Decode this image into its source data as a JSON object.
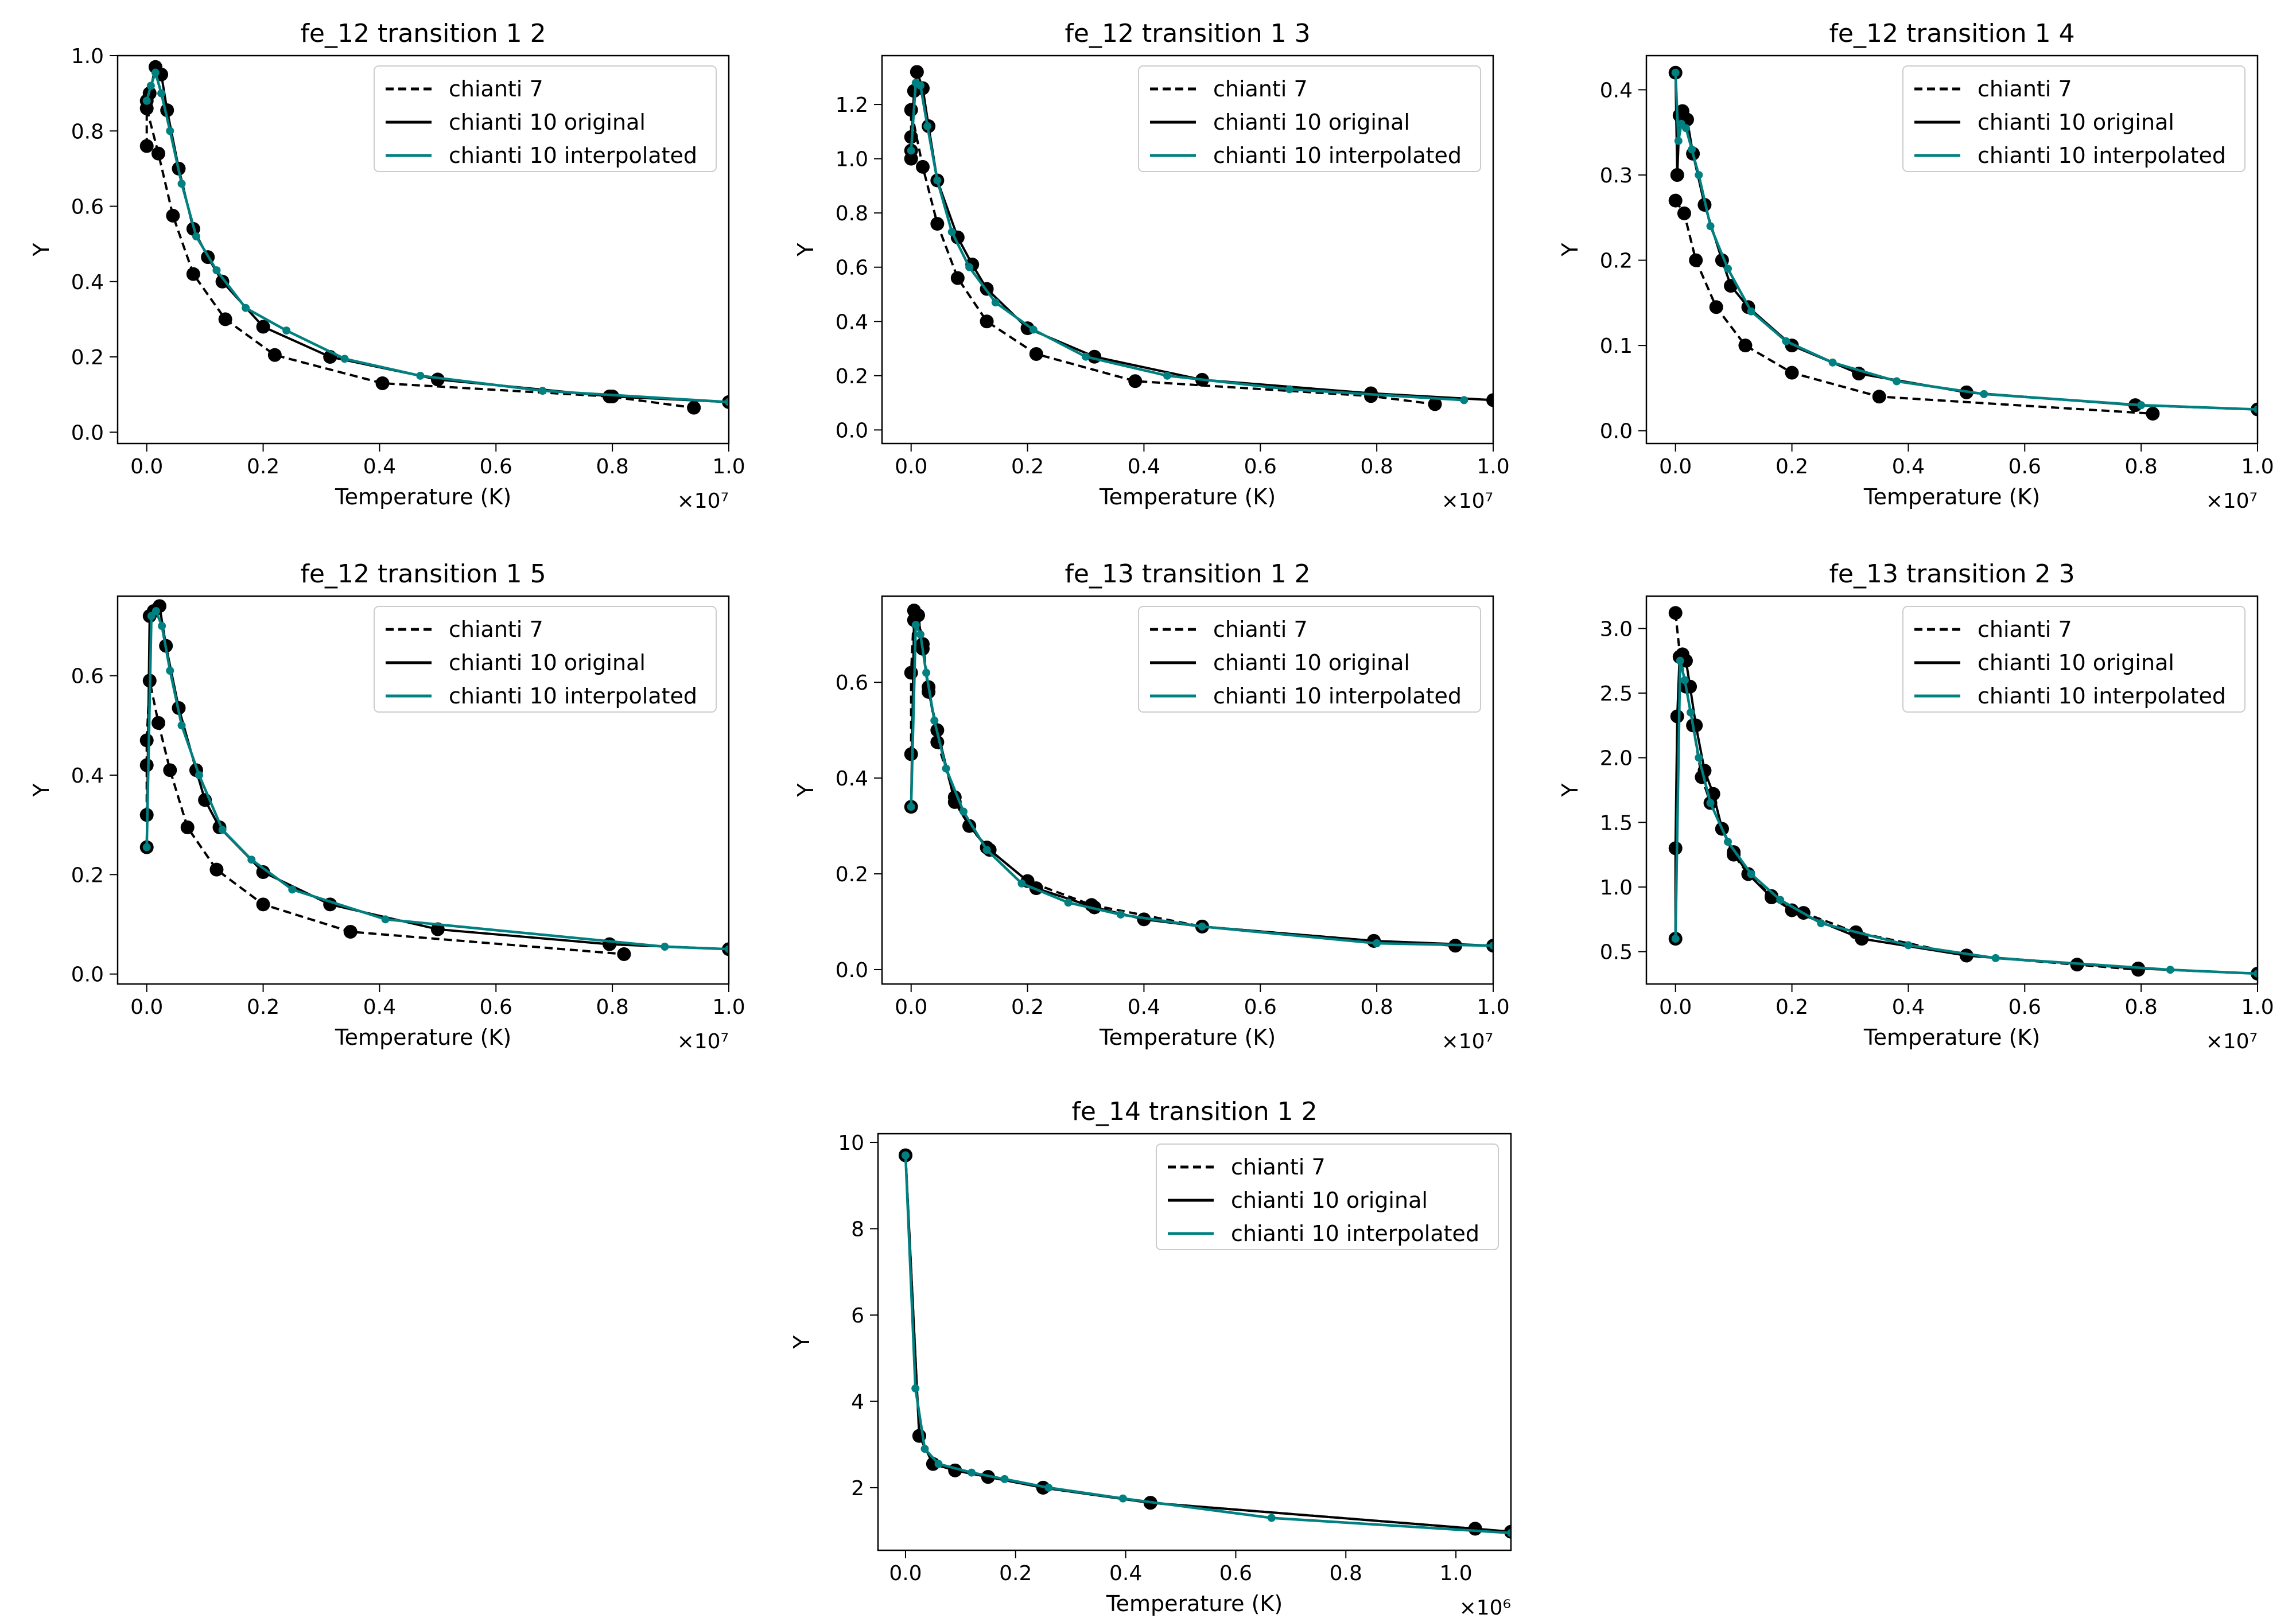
{
  "figure": {
    "legend_labels": [
      "chianti 7",
      "chianti 10 original",
      "chianti 10 interpolated"
    ],
    "colors": {
      "chianti7": "#000000",
      "original": "#000000",
      "interpolated": "#008080"
    }
  },
  "chart_data": [
    {
      "type": "line",
      "title": "fe_12 transition 1 2",
      "xlabel": "Temperature (K)",
      "ylabel": "Y",
      "xscale_label": "×10⁷",
      "xscale": 10000000,
      "xlim": [
        -0.05,
        1.0
      ],
      "ylim": [
        -0.03,
        1.0
      ],
      "xticks": [
        0.0,
        0.2,
        0.4,
        0.6,
        0.8,
        1.0
      ],
      "yticks": [
        0.0,
        0.2,
        0.4,
        0.6,
        0.8,
        1.0
      ],
      "legend_position": "upper right",
      "series": [
        {
          "name": "chianti 7",
          "style": "dashed",
          "x": [
            0.0,
            0.0,
            0.02,
            0.045,
            0.08,
            0.135,
            0.22,
            0.405,
            0.795,
            0.94
          ],
          "y": [
            0.76,
            0.86,
            0.74,
            0.575,
            0.42,
            0.3,
            0.205,
            0.13,
            0.095,
            0.065
          ]
        },
        {
          "name": "chianti 10 original",
          "style": "solid-markers",
          "x": [
            0.0,
            0.005,
            0.015,
            0.025,
            0.035,
            0.055,
            0.08,
            0.105,
            0.13,
            0.2,
            0.315,
            0.5,
            0.8,
            1.0
          ],
          "y": [
            0.88,
            0.9,
            0.97,
            0.95,
            0.855,
            0.7,
            0.54,
            0.465,
            0.4,
            0.28,
            0.2,
            0.14,
            0.095,
            0.08
          ]
        },
        {
          "name": "chianti 10 interpolated",
          "style": "solid-smallmarkers",
          "x": [
            0.0,
            0.007,
            0.015,
            0.025,
            0.04,
            0.06,
            0.085,
            0.12,
            0.17,
            0.24,
            0.34,
            0.47,
            0.68,
            1.0
          ],
          "y": [
            0.88,
            0.92,
            0.955,
            0.9,
            0.8,
            0.66,
            0.52,
            0.43,
            0.33,
            0.27,
            0.195,
            0.15,
            0.11,
            0.08
          ]
        }
      ]
    },
    {
      "type": "line",
      "title": "fe_12 transition 1 3",
      "xlabel": "Temperature (K)",
      "ylabel": "Y",
      "xscale_label": "×10⁷",
      "xscale": 10000000,
      "xlim": [
        -0.05,
        1.0
      ],
      "ylim": [
        -0.05,
        1.38
      ],
      "xticks": [
        0.0,
        0.2,
        0.4,
        0.6,
        0.8,
        1.0
      ],
      "yticks": [
        0.0,
        0.2,
        0.4,
        0.6,
        0.8,
        1.0,
        1.2
      ],
      "legend_position": "upper right",
      "series": [
        {
          "name": "chianti 7",
          "style": "dashed",
          "x": [
            0.0,
            0.0,
            0.0,
            0.02,
            0.045,
            0.08,
            0.13,
            0.215,
            0.385,
            0.79,
            0.9
          ],
          "y": [
            1.0,
            1.08,
            1.18,
            0.97,
            0.76,
            0.56,
            0.4,
            0.28,
            0.18,
            0.125,
            0.095
          ]
        },
        {
          "name": "chianti 10 original",
          "style": "solid-markers",
          "x": [
            0.0,
            0.005,
            0.01,
            0.02,
            0.03,
            0.045,
            0.08,
            0.105,
            0.13,
            0.2,
            0.315,
            0.5,
            0.79,
            1.0
          ],
          "y": [
            1.03,
            1.25,
            1.32,
            1.26,
            1.12,
            0.92,
            0.71,
            0.61,
            0.52,
            0.375,
            0.27,
            0.185,
            0.135,
            0.11
          ]
        },
        {
          "name": "chianti 10 interpolated",
          "style": "solid-smallmarkers",
          "x": [
            0.0,
            0.008,
            0.016,
            0.028,
            0.045,
            0.07,
            0.1,
            0.145,
            0.21,
            0.3,
            0.44,
            0.65,
            0.95
          ],
          "y": [
            1.03,
            1.28,
            1.27,
            1.12,
            0.92,
            0.73,
            0.6,
            0.47,
            0.37,
            0.27,
            0.2,
            0.15,
            0.11
          ]
        }
      ]
    },
    {
      "type": "line",
      "title": "fe_12 transition 1 4",
      "xlabel": "Temperature (K)",
      "ylabel": "Y",
      "xscale_label": "×10⁷",
      "xscale": 10000000,
      "xlim": [
        -0.05,
        1.0
      ],
      "ylim": [
        -0.015,
        0.44
      ],
      "xticks": [
        0.0,
        0.2,
        0.4,
        0.6,
        0.8,
        1.0
      ],
      "yticks": [
        0.0,
        0.1,
        0.2,
        0.3,
        0.4
      ],
      "legend_position": "upper right",
      "series": [
        {
          "name": "chianti 7",
          "style": "dashed",
          "x": [
            0.0,
            0.015,
            0.035,
            0.07,
            0.12,
            0.2,
            0.35,
            0.82
          ],
          "y": [
            0.27,
            0.255,
            0.2,
            0.145,
            0.1,
            0.068,
            0.04,
            0.02
          ]
        },
        {
          "name": "chianti 10 original",
          "style": "solid-markers",
          "x": [
            0.0,
            0.003,
            0.007,
            0.012,
            0.02,
            0.03,
            0.05,
            0.08,
            0.095,
            0.125,
            0.2,
            0.315,
            0.5,
            0.79,
            1.0
          ],
          "y": [
            0.42,
            0.3,
            0.37,
            0.375,
            0.365,
            0.325,
            0.265,
            0.2,
            0.17,
            0.145,
            0.1,
            0.067,
            0.045,
            0.03,
            0.025
          ]
        },
        {
          "name": "chianti 10 interpolated",
          "style": "solid-smallmarkers",
          "x": [
            0.0,
            0.005,
            0.01,
            0.018,
            0.028,
            0.04,
            0.06,
            0.09,
            0.13,
            0.19,
            0.27,
            0.38,
            0.53,
            0.8,
            1.0
          ],
          "y": [
            0.42,
            0.34,
            0.36,
            0.355,
            0.33,
            0.3,
            0.24,
            0.19,
            0.14,
            0.105,
            0.08,
            0.058,
            0.043,
            0.03,
            0.025
          ]
        }
      ]
    },
    {
      "type": "line",
      "title": "fe_12 transition 1 5",
      "xlabel": "Temperature (K)",
      "ylabel": "Y",
      "xscale_label": "×10⁷",
      "xscale": 10000000,
      "xlim": [
        -0.05,
        1.0
      ],
      "ylim": [
        -0.02,
        0.76
      ],
      "xticks": [
        0.0,
        0.2,
        0.4,
        0.6,
        0.8,
        1.0
      ],
      "yticks": [
        0.0,
        0.2,
        0.4,
        0.6
      ],
      "legend_position": "upper right",
      "series": [
        {
          "name": "chianti 7",
          "style": "dashed",
          "x": [
            0.0,
            0.0,
            0.0,
            0.005,
            0.02,
            0.04,
            0.07,
            0.12,
            0.2,
            0.35,
            0.82
          ],
          "y": [
            0.32,
            0.42,
            0.47,
            0.59,
            0.505,
            0.41,
            0.295,
            0.21,
            0.14,
            0.085,
            0.04
          ]
        },
        {
          "name": "chianti 10 original",
          "style": "solid-markers",
          "x": [
            0.0,
            0.005,
            0.012,
            0.022,
            0.033,
            0.055,
            0.085,
            0.1,
            0.125,
            0.2,
            0.315,
            0.5,
            0.795,
            1.0
          ],
          "y": [
            0.255,
            0.72,
            0.73,
            0.74,
            0.66,
            0.535,
            0.41,
            0.35,
            0.295,
            0.205,
            0.14,
            0.09,
            0.06,
            0.05
          ]
        },
        {
          "name": "chianti 10 interpolated",
          "style": "solid-smallmarkers",
          "x": [
            0.0,
            0.008,
            0.016,
            0.026,
            0.04,
            0.06,
            0.09,
            0.13,
            0.18,
            0.25,
            0.41,
            0.89,
            1.0
          ],
          "y": [
            0.255,
            0.72,
            0.73,
            0.7,
            0.61,
            0.5,
            0.4,
            0.29,
            0.23,
            0.17,
            0.11,
            0.055,
            0.05
          ]
        }
      ]
    },
    {
      "type": "line",
      "title": "fe_13 transition 1 2",
      "xlabel": "Temperature (K)",
      "ylabel": "Y",
      "xscale_label": "×10⁷",
      "xscale": 10000000,
      "xlim": [
        -0.05,
        1.0
      ],
      "ylim": [
        -0.03,
        0.78
      ],
      "xticks": [
        0.0,
        0.2,
        0.4,
        0.6,
        0.8,
        1.0
      ],
      "yticks": [
        0.0,
        0.2,
        0.4,
        0.6
      ],
      "legend_position": "upper right",
      "series": [
        {
          "name": "chianti 7",
          "style": "dashed",
          "x": [
            0.0,
            0.0,
            0.005,
            0.012,
            0.02,
            0.03,
            0.045,
            0.075,
            0.1,
            0.13,
            0.2,
            0.31,
            0.5,
            0.795,
            0.935
          ],
          "y": [
            0.45,
            0.62,
            0.75,
            0.74,
            0.68,
            0.59,
            0.475,
            0.36,
            0.3,
            0.255,
            0.185,
            0.135,
            0.09,
            0.06,
            0.05
          ]
        },
        {
          "name": "chianti 10 original",
          "style": "solid-markers",
          "x": [
            0.0,
            0.005,
            0.012,
            0.02,
            0.03,
            0.045,
            0.075,
            0.1,
            0.135,
            0.215,
            0.315,
            0.4,
            0.5,
            0.795,
            1.0
          ],
          "y": [
            0.34,
            0.73,
            0.74,
            0.67,
            0.58,
            0.5,
            0.35,
            0.3,
            0.25,
            0.17,
            0.13,
            0.105,
            0.09,
            0.06,
            0.05
          ]
        },
        {
          "name": "chianti 10 interpolated",
          "style": "solid-smallmarkers",
          "x": [
            0.0,
            0.008,
            0.016,
            0.026,
            0.04,
            0.06,
            0.09,
            0.13,
            0.19,
            0.27,
            0.36,
            0.5,
            0.8,
            1.0
          ],
          "y": [
            0.34,
            0.72,
            0.7,
            0.62,
            0.52,
            0.42,
            0.33,
            0.25,
            0.18,
            0.14,
            0.115,
            0.09,
            0.055,
            0.05
          ]
        }
      ]
    },
    {
      "type": "line",
      "title": "fe_13 transition 2 3",
      "xlabel": "Temperature (K)",
      "ylabel": "Y",
      "xscale_label": "×10⁷",
      "xscale": 10000000,
      "xlim": [
        -0.05,
        1.0
      ],
      "ylim": [
        0.25,
        3.25
      ],
      "xticks": [
        0.0,
        0.2,
        0.4,
        0.6,
        0.8,
        1.0
      ],
      "yticks": [
        0.5,
        1.0,
        1.5,
        2.0,
        2.5,
        3.0
      ],
      "legend_position": "upper right",
      "series": [
        {
          "name": "chianti 7",
          "style": "dashed",
          "x": [
            0.0,
            0.008,
            0.018,
            0.03,
            0.045,
            0.06,
            0.08,
            0.1,
            0.125,
            0.165,
            0.22,
            0.31,
            0.5,
            0.69,
            0.795
          ],
          "y": [
            3.12,
            2.78,
            2.55,
            2.25,
            1.85,
            1.65,
            1.45,
            1.25,
            1.1,
            0.93,
            0.8,
            0.65,
            0.47,
            0.4,
            0.36
          ]
        },
        {
          "name": "chianti 10 original",
          "style": "solid-markers",
          "x": [
            0.0,
            0.0,
            0.003,
            0.007,
            0.012,
            0.018,
            0.025,
            0.035,
            0.05,
            0.065,
            0.08,
            0.1,
            0.125,
            0.165,
            0.2,
            0.32,
            0.5,
            0.795,
            1.0
          ],
          "y": [
            0.6,
            1.3,
            2.32,
            2.78,
            2.8,
            2.75,
            2.55,
            2.25,
            1.9,
            1.72,
            1.45,
            1.27,
            1.1,
            0.92,
            0.82,
            0.6,
            0.47,
            0.37,
            0.33
          ]
        },
        {
          "name": "chianti 10 interpolated",
          "style": "solid-smallmarkers",
          "x": [
            0.0,
            0.008,
            0.016,
            0.026,
            0.04,
            0.06,
            0.09,
            0.13,
            0.18,
            0.25,
            0.4,
            0.55,
            0.85,
            1.0
          ],
          "y": [
            0.6,
            2.75,
            2.6,
            2.35,
            2.0,
            1.65,
            1.35,
            1.1,
            0.9,
            0.72,
            0.55,
            0.45,
            0.36,
            0.33
          ]
        }
      ]
    },
    {
      "type": "line",
      "title": "fe_14 transition 1 2",
      "xlabel": "Temperature (K)",
      "ylabel": "Y",
      "xscale_label": "×10⁶",
      "xscale": 1000000,
      "xlim": [
        -0.05,
        1.1
      ],
      "ylim": [
        0.55,
        10.2
      ],
      "xticks": [
        0.0,
        0.2,
        0.4,
        0.6,
        0.8,
        1.0
      ],
      "yticks": [
        2,
        4,
        6,
        8,
        10
      ],
      "legend_position": "upper right",
      "series": [
        {
          "name": "chianti 7",
          "style": "dashed",
          "x": [
            0.0,
            0.025,
            0.05,
            0.09,
            0.15,
            0.25,
            0.445,
            1.035
          ],
          "y": [
            9.7,
            3.2,
            2.55,
            2.4,
            2.25,
            2.0,
            1.65,
            1.05
          ]
        },
        {
          "name": "chianti 10 original",
          "style": "solid-markers",
          "x": [
            0.0,
            0.025,
            0.05,
            0.09,
            0.15,
            0.25,
            0.445,
            1.035,
            1.1
          ],
          "y": [
            9.7,
            3.2,
            2.55,
            2.4,
            2.25,
            2.0,
            1.65,
            1.05,
            0.98
          ]
        },
        {
          "name": "chianti 10 interpolated",
          "style": "solid-smallmarkers",
          "x": [
            0.0,
            0.018,
            0.035,
            0.06,
            0.12,
            0.18,
            0.26,
            0.395,
            0.665,
            1.1
          ],
          "y": [
            9.7,
            4.3,
            2.9,
            2.55,
            2.35,
            2.2,
            2.0,
            1.75,
            1.3,
            0.95
          ]
        }
      ]
    }
  ]
}
